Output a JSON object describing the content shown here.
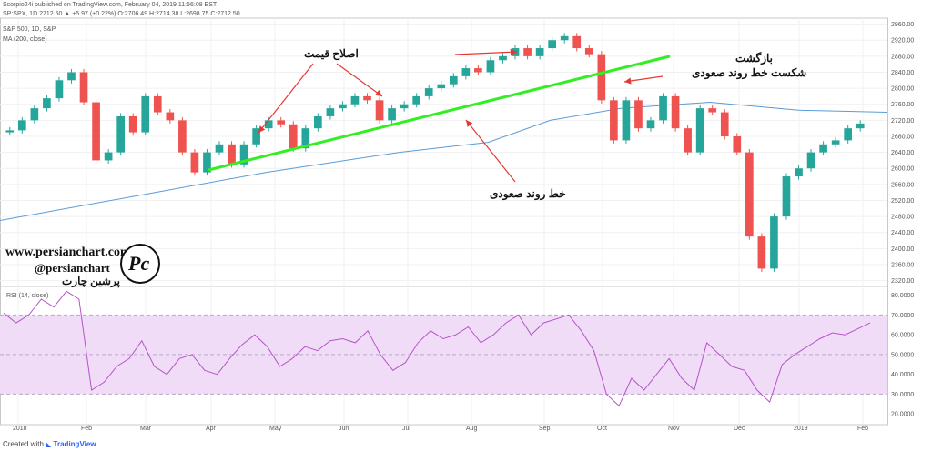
{
  "header": {
    "publisher_line": "Scorpio24i published on TradingView.com, February 04, 2019 11:56:08 EST",
    "quote_line": "SP:SPX, 1D  2712.50  ▲ +5.97 (+0.22%)  O:2706.49  H:2714.38  L:2698.75  C:2712.50",
    "symbol_line": "S&P 500, 1D, S&P",
    "indicator_line": "MA (200, close)",
    "rsi_label": "RSI (14, close)"
  },
  "annotations": {
    "price_correction": "اصلاح قیمت",
    "return": "بازگشت",
    "uptrend_break": "شکست خط روند صعودی",
    "uptrend_line": "خط روند صعودی"
  },
  "watermark": {
    "site": "www.persianchart.com",
    "handle": "@persianchart",
    "name": "پرشین چارت",
    "logo_text": "Pc"
  },
  "footer": {
    "created_with": "Created with",
    "brand": "TradingView"
  },
  "colors": {
    "up": "#26a69a",
    "down": "#ef5350",
    "ma": "#5b9bd5",
    "trendline": "#33ee22",
    "arrow": "#e53935",
    "rsi_line": "#b455c8",
    "rsi_band": "#f1dcf7"
  },
  "chart_data": [
    {
      "type": "candlestick",
      "title": "S&P 500, 1D, S&P",
      "x_ticks": [
        "2018",
        "Feb",
        "Mar",
        "Apr",
        "May",
        "Jun",
        "Jul",
        "Aug",
        "Sep",
        "Oct",
        "Nov",
        "Dec",
        "2019",
        "Feb"
      ],
      "y_ticks": [
        2320,
        2360,
        2400,
        2440,
        2480,
        2520,
        2560,
        2600,
        2640,
        2680,
        2720,
        2760,
        2800,
        2840,
        2880,
        2920,
        2960
      ],
      "ylim": [
        2310,
        2975
      ],
      "weekly_close": [
        2695,
        2720,
        2750,
        2775,
        2820,
        2840,
        2765,
        2620,
        2640,
        2730,
        2690,
        2780,
        2740,
        2720,
        2640,
        2590,
        2640,
        2660,
        2610,
        2660,
        2700,
        2720,
        2710,
        2650,
        2700,
        2730,
        2750,
        2760,
        2780,
        2770,
        2720,
        2750,
        2760,
        2780,
        2800,
        2810,
        2830,
        2850,
        2840,
        2870,
        2880,
        2900,
        2880,
        2900,
        2920,
        2930,
        2900,
        2885,
        2770,
        2670,
        2770,
        2700,
        2720,
        2780,
        2700,
        2640,
        2750,
        2740,
        2680,
        2640,
        2430,
        2350,
        2480,
        2580,
        2600,
        2640,
        2660,
        2670,
        2700,
        2712
      ],
      "ma200": {
        "name": "MA (200, close)",
        "points": [
          [
            0,
            2470
          ],
          [
            0.15,
            2530
          ],
          [
            0.3,
            2590
          ],
          [
            0.45,
            2640
          ],
          [
            0.55,
            2665
          ],
          [
            0.62,
            2720
          ],
          [
            0.7,
            2750
          ],
          [
            0.8,
            2765
          ],
          [
            0.9,
            2745
          ],
          [
            1,
            2740
          ]
        ]
      },
      "trendline": [
        [
          2596,
          0.235
        ],
        [
          2880,
          0.755
        ]
      ]
    },
    {
      "type": "line",
      "title": "RSI (14, close)",
      "y_ticks": [
        20,
        30,
        40,
        50,
        60,
        70,
        80
      ],
      "ylim": [
        15,
        84
      ],
      "band": [
        30,
        70
      ],
      "values": [
        71,
        66,
        70,
        78,
        74,
        82,
        78,
        32,
        36,
        44,
        48,
        57,
        44,
        40,
        48,
        50,
        42,
        40,
        48,
        55,
        60,
        54,
        44,
        48,
        54,
        52,
        57,
        58,
        56,
        62,
        50,
        42,
        46,
        56,
        62,
        58,
        60,
        64,
        56,
        60,
        66,
        70,
        60,
        66,
        68,
        70,
        62,
        52,
        30,
        24,
        38,
        32,
        40,
        48,
        38,
        32,
        56,
        50,
        44,
        42,
        32,
        26,
        45,
        50,
        54,
        58,
        61,
        60,
        63,
        66
      ]
    }
  ]
}
